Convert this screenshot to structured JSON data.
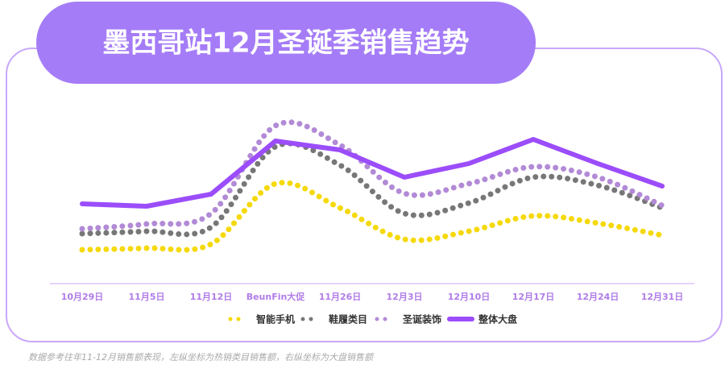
{
  "chart_data": {
    "type": "line",
    "title": "墨西哥站12月圣诞季销售趋势",
    "note": "数据参考往年11-12月销售额表现，左纵坐标为热销类目销售额，右纵坐标为大盘销售额",
    "categories": [
      "10月29日",
      "11月5日",
      "11月12日",
      "BeunFin大促",
      "11月26日",
      "12月3日",
      "12月10日",
      "12月17日",
      "12月24日",
      "12月31日"
    ],
    "ylim": [
      0,
      110
    ],
    "series": [
      {
        "name": "智能手机",
        "color": "#f5d90a",
        "style": "dotted",
        "values": [
          21,
          22,
          24.5,
          62,
          47,
          27.5,
          32.5,
          42,
          37.5,
          30
        ]
      },
      {
        "name": "鞋履类目",
        "color": "#777777",
        "style": "dotted",
        "values": [
          31,
          32.5,
          35,
          85,
          73.5,
          43.5,
          50,
          66,
          61,
          47
        ]
      },
      {
        "name": "圣诞装饰",
        "color": "#b28ad6",
        "style": "dotted",
        "values": [
          34,
          37,
          43.5,
          98,
          86,
          56,
          62,
          72.5,
          66,
          48.5
        ]
      },
      {
        "name": "整体大盘",
        "color": "#9b4dfa",
        "style": "solid",
        "values": [
          49.5,
          48,
          55.5,
          88.5,
          83,
          66,
          74.5,
          89.5,
          74.5,
          60.5
        ]
      }
    ]
  }
}
